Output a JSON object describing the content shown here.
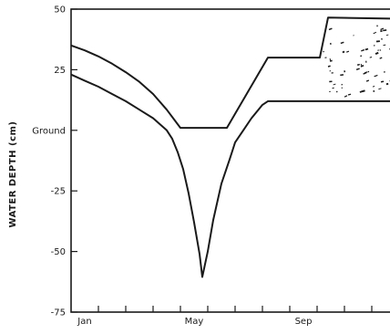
{
  "chart_data": {
    "type": "line",
    "title": "",
    "xlabel": "",
    "ylabel": "WATER DEPTH (cm)",
    "xlim": [
      0,
      12
    ],
    "ylim": [
      -75,
      50
    ],
    "x_tick_labels": [
      {
        "x": 0.5,
        "label": "Jan"
      },
      {
        "x": 4.5,
        "label": "May"
      },
      {
        "x": 8.5,
        "label": "Sep"
      }
    ],
    "x_minor_ticks": [
      1,
      2,
      3,
      4,
      5,
      6,
      7,
      8,
      9,
      10,
      11
    ],
    "y_ticks": [
      {
        "y": 50,
        "label": "50"
      },
      {
        "y": 25,
        "label": "25"
      },
      {
        "y": 0,
        "label": "Ground"
      },
      {
        "y": -25,
        "label": "-25"
      },
      {
        "y": -50,
        "label": "-50"
      },
      {
        "y": -75,
        "label": "-75"
      }
    ],
    "grid": false,
    "legend": "none",
    "series": [
      {
        "x": [
          0,
          0.5,
          1,
          1.5,
          2,
          2.5,
          3,
          3.5,
          4,
          4.5,
          5,
          5.7,
          7.2,
          9.1,
          9.4,
          12
        ],
        "y": [
          35,
          33,
          30.5,
          27.5,
          24,
          20,
          15,
          8.5,
          1,
          1,
          1,
          1,
          30,
          30,
          46.5,
          46
        ]
      },
      {
        "x": [
          0,
          0.5,
          1,
          1.5,
          2,
          2.5,
          3,
          3.5,
          3.7,
          3.9,
          4.1,
          4.3,
          4.5,
          4.7,
          4.8,
          5.0,
          5.2,
          5.5,
          5.8,
          6.0,
          6.3,
          6.6,
          7.0,
          7.2,
          12
        ],
        "y": [
          23,
          20.5,
          18,
          15,
          12,
          8.5,
          5,
          0,
          -3.5,
          -9,
          -16,
          -26,
          -38,
          -51,
          -60.5,
          -50,
          -37,
          -22,
          -12,
          -5,
          0,
          5,
          10.5,
          12,
          12
        ]
      }
    ],
    "speckle_region": {
      "x": [
        9.2,
        12
      ],
      "y": [
        14,
        44
      ]
    },
    "colors": {
      "line": "#1a1a1a",
      "background": "#ffffff"
    }
  }
}
